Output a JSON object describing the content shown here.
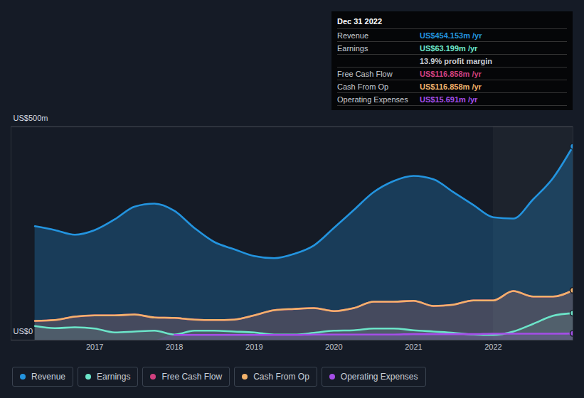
{
  "chart_data": {
    "type": "line",
    "x": [
      2016.25,
      2016.5,
      2016.75,
      2017,
      2017.25,
      2017.5,
      2017.75,
      2018,
      2018.25,
      2018.5,
      2018.75,
      2019,
      2019.25,
      2019.5,
      2019.75,
      2020,
      2020.25,
      2020.5,
      2020.75,
      2021,
      2021.25,
      2021.5,
      2021.75,
      2022,
      2022.25,
      2022.5,
      2022.75,
      2023
    ],
    "xlim": [
      2015.95,
      2023.0
    ],
    "xticks": [
      2017,
      2018,
      2019,
      2020,
      2021,
      2022
    ],
    "ylim": [
      0,
      500
    ],
    "yticks": [
      {
        "value": 0,
        "label": "US$0"
      },
      {
        "value": 500,
        "label": "US$500m"
      }
    ],
    "grid": true,
    "highlight": [
      2022,
      2023
    ],
    "series": [
      {
        "name": "Revenue",
        "color": "#2394df",
        "values": [
          267,
          258,
          247,
          258,
          283,
          313,
          320,
          303,
          263,
          230,
          213,
          197,
          192,
          202,
          222,
          263,
          305,
          347,
          373,
          385,
          377,
          347,
          317,
          288,
          285,
          330,
          380,
          454.153
        ]
      },
      {
        "name": "Earnings",
        "color": "#6ce5c9",
        "values": [
          33,
          28,
          30,
          27,
          18,
          20,
          22,
          13,
          22,
          22,
          20,
          18,
          13,
          13,
          17,
          22,
          23,
          27,
          27,
          23,
          20,
          17,
          13,
          12,
          20,
          38,
          57,
          63.199
        ]
      },
      {
        "name": "Free Cash Flow",
        "color": "#d1407f",
        "values": [
          45,
          47,
          55,
          58,
          58,
          60,
          53,
          52,
          48,
          47,
          48,
          58,
          70,
          73,
          75,
          68,
          75,
          90,
          90,
          92,
          80,
          83,
          93,
          93,
          115,
          102,
          102,
          116.858
        ]
      },
      {
        "name": "Cash From Op",
        "color": "#f2b26b",
        "values": [
          45,
          47,
          55,
          58,
          58,
          60,
          53,
          52,
          48,
          47,
          48,
          58,
          70,
          73,
          75,
          68,
          75,
          90,
          90,
          92,
          80,
          83,
          93,
          93,
          115,
          102,
          102,
          116.858
        ]
      },
      {
        "name": "Operating Expenses",
        "color": "#a54ee8",
        "values": [
          null,
          null,
          null,
          null,
          null,
          null,
          null,
          12,
          12,
          12,
          12,
          12,
          12,
          12,
          13,
          13,
          13,
          13,
          13,
          14,
          14,
          14,
          14,
          15,
          15,
          15,
          15,
          15.691
        ]
      }
    ],
    "tooltip": {
      "date": "Dec 31 2022",
      "rows": [
        {
          "label": "Revenue",
          "value": "US$454.153m /yr",
          "color": "#2394df"
        },
        {
          "label": "Earnings",
          "value": "US$63.199m /yr",
          "color": "#6ce5c9"
        },
        {
          "value": "13.9% profit margin",
          "color": "#c8ccd2"
        },
        {
          "label": "Free Cash Flow",
          "value": "US$116.858m /yr",
          "color": "#d1407f"
        },
        {
          "label": "Cash From Op",
          "value": "US$116.858m /yr",
          "color": "#f2b26b"
        },
        {
          "label": "Operating Expenses",
          "value": "US$15.691m /yr",
          "color": "#a54ee8"
        }
      ]
    }
  }
}
